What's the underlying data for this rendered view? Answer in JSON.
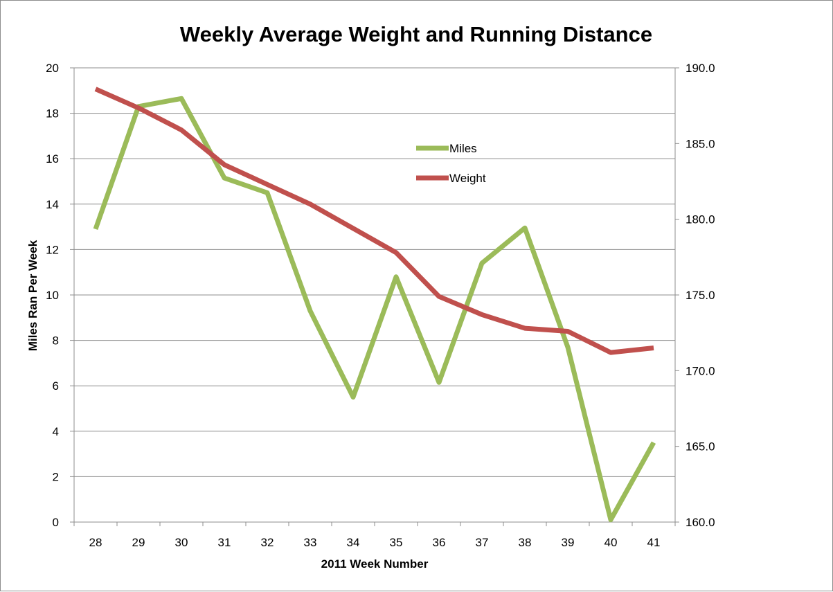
{
  "chart_data": {
    "type": "line",
    "title": "Weekly Average Weight and Running Distance",
    "xlabel": "2011 Week Number",
    "ylabel": "Miles Ran Per Week",
    "ylabel_right": "",
    "x": [
      28,
      29,
      30,
      31,
      32,
      33,
      34,
      35,
      36,
      37,
      38,
      39,
      40,
      41
    ],
    "ylim": [
      0,
      20
    ],
    "yticks": [
      0,
      2,
      4,
      6,
      8,
      10,
      12,
      14,
      16,
      18,
      20
    ],
    "ylim_right": [
      160,
      190
    ],
    "yticks_right": [
      "160.0",
      "165.0",
      "170.0",
      "175.0",
      "180.0",
      "185.0",
      "190.0"
    ],
    "grid": true,
    "legend_position": "upper-center-right",
    "series": [
      {
        "name": "Miles",
        "axis": "left",
        "color": "#9bbb59",
        "values": [
          12.9,
          18.3,
          18.65,
          15.15,
          14.5,
          9.3,
          5.5,
          10.8,
          6.15,
          11.4,
          12.95,
          7.7,
          0.1,
          3.5
        ]
      },
      {
        "name": "Weight",
        "axis": "right",
        "color": "#c0504d",
        "values": [
          188.6,
          187.35,
          185.9,
          183.6,
          182.3,
          181.0,
          179.4,
          177.8,
          174.9,
          173.7,
          172.8,
          172.6,
          171.2,
          171.5
        ]
      }
    ]
  }
}
